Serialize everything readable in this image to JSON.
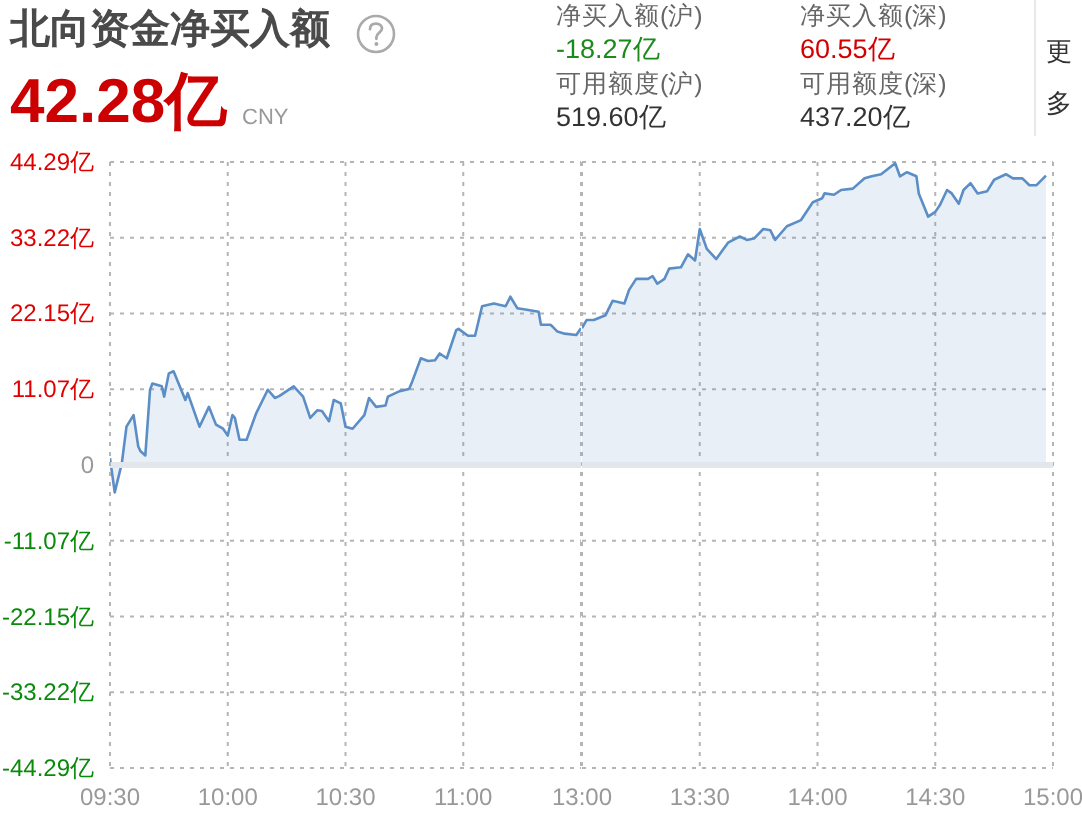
{
  "chart_data": [
    {
      "type": "area",
      "title": "北向资金净买入额",
      "annotations": [
        "42.28亿",
        "CNY",
        "净买入额(沪)",
        "-18.27亿",
        "净买入额(深)",
        "60.55亿",
        "可用额度(沪)",
        "519.60亿",
        "可用额度(深)",
        "437.20亿",
        "更多"
      ],
      "x": [
        9.5,
        9.52,
        9.55,
        9.57,
        9.6,
        9.62,
        9.63,
        9.65,
        9.67,
        9.68,
        9.72,
        9.73,
        9.75,
        9.77,
        9.82,
        9.83,
        9.88,
        9.92,
        9.95,
        9.98,
        10.0,
        10.02,
        10.03,
        10.05,
        10.08,
        10.12,
        10.17,
        10.2,
        10.22,
        10.28,
        10.32,
        10.35,
        10.38,
        10.4,
        10.43,
        10.45,
        10.48,
        10.5,
        10.53,
        10.58,
        10.6,
        10.63,
        10.67,
        10.68,
        10.73,
        10.77,
        10.78,
        10.82,
        10.85,
        10.88,
        10.9,
        10.93,
        10.97,
        10.98,
        11.02,
        11.05,
        11.08,
        11.13,
        11.18,
        11.2,
        11.23,
        11.27,
        11.32,
        11.33,
        11.37,
        11.38,
        11.4,
        11.43,
        11.48,
        11.5
      ],
      "values": [
        1.0,
        -4.0,
        0.2,
        5.6,
        7.3,
        2.7,
        2.0,
        1.4,
        11.0,
        11.9,
        11.5,
        10.0,
        13.4,
        13.7,
        9.5,
        10.5,
        5.6,
        8.5,
        5.9,
        5.3,
        4.3,
        7.3,
        6.9,
        3.7,
        3.7,
        7.5,
        11.0,
        9.8,
        10.1,
        11.5,
        10.0,
        6.9,
        8.0,
        7.9,
        6.4,
        9.5,
        9.0,
        5.6,
        5.3,
        7.3,
        9.8,
        8.5,
        8.7,
        10.0,
        10.8,
        11.1,
        11.9,
        15.6,
        15.2,
        15.3,
        16.3,
        15.6,
        19.7,
        19.9,
        18.9,
        18.9,
        23.2,
        23.6,
        23.2,
        24.6,
        22.9,
        22.7,
        22.4,
        20.5,
        20.5,
        20.2,
        19.5,
        19.2,
        19.0,
        20.0
      ],
      "color": "#5b8ec6",
      "xlim": [
        9.5,
        11.5
      ],
      "xticks": [
        {
          "value": 9.5,
          "label": "09:30"
        },
        {
          "value": 10,
          "label": "10:00"
        },
        {
          "value": 10.5,
          "label": "10:30"
        },
        {
          "value": 11,
          "label": "11:00"
        },
        {
          "value": 11.5,
          "label": null
        }
      ],
      "ylim": [
        -44.29,
        44.29
      ],
      "yticks": [
        {
          "value": -44.29,
          "label": "-44.29亿"
        },
        {
          "value": -33.22,
          "label": "-33.22亿"
        },
        {
          "value": -22.15,
          "label": "-22.15亿"
        },
        {
          "value": -11.07,
          "label": "-11.07亿"
        },
        0,
        {
          "value": 11.07,
          "label": "11.07亿"
        },
        {
          "value": 22.15,
          "label": "22.15亿"
        },
        {
          "value": 33.22,
          "label": "33.22亿"
        },
        {
          "value": 44.29,
          "label": "44.29亿"
        }
      ],
      "grid": true,
      "ref_lines": [
        {
          "axis": "y",
          "value": 0,
          "color": "#e3e7ec"
        }
      ]
    },
    {
      "type": "area",
      "x": [
        13.0,
        13.02,
        13.05,
        13.1,
        13.13,
        13.18,
        13.2,
        13.23,
        13.28,
        13.3,
        13.32,
        13.35,
        13.37,
        13.42,
        13.45,
        13.48,
        13.5,
        13.53,
        13.57,
        13.62,
        13.67,
        13.7,
        13.73,
        13.77,
        13.8,
        13.82,
        13.87,
        13.93,
        13.98,
        14.02,
        14.03,
        14.07,
        14.1,
        14.15,
        14.2,
        14.23,
        14.27,
        14.3,
        14.33,
        14.35,
        14.38,
        14.42,
        14.43,
        14.47,
        14.5,
        14.52,
        14.55,
        14.57,
        14.6,
        14.62,
        14.65,
        14.68,
        14.72,
        14.75,
        14.8,
        14.83,
        14.87,
        14.9,
        14.93,
        14.97
      ],
      "values": [
        20.0,
        21.2,
        21.2,
        21.9,
        24.0,
        23.6,
        25.6,
        27.2,
        27.2,
        27.6,
        26.5,
        27.2,
        28.7,
        28.9,
        30.8,
        29.9,
        34.5,
        31.6,
        30.1,
        32.5,
        33.4,
        32.9,
        33.1,
        34.5,
        34.3,
        32.9,
        34.9,
        35.8,
        38.4,
        39.0,
        39.7,
        39.5,
        40.2,
        40.4,
        41.9,
        42.2,
        42.5,
        43.3,
        44.1,
        42.2,
        42.8,
        42.2,
        39.7,
        36.3,
        37.0,
        38.0,
        40.2,
        39.7,
        38.2,
        40.2,
        41.2,
        39.7,
        40.0,
        41.7,
        42.5,
        41.9,
        41.9,
        40.9,
        40.9,
        42.3
      ],
      "color": "#5b8ec6",
      "xlim": [
        13,
        15
      ],
      "xticks": [
        {
          "value": 13,
          "label": "13:00"
        },
        {
          "value": 13.5,
          "label": "13:30"
        },
        {
          "value": 14,
          "label": "14:00"
        },
        {
          "value": 14.5,
          "label": "14:30"
        },
        {
          "value": 15,
          "label": "15:00"
        }
      ],
      "ylim": [
        -44.29,
        44.29
      ],
      "yticks": [
        -44.29,
        -33.22,
        -22.15,
        -11.07,
        0,
        11.07,
        22.15,
        33.22,
        44.29
      ],
      "tick_labels": "x",
      "grid": true,
      "ref_lines": [
        {
          "axis": "y",
          "value": 0,
          "color": "#e3e7ec"
        }
      ]
    }
  ]
}
